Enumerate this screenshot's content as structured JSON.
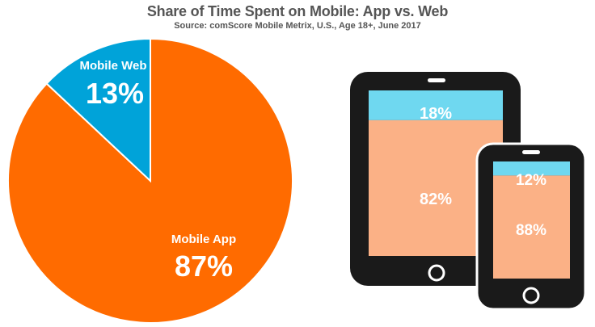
{
  "title": "Share of Time Spent on Mobile: App vs. Web",
  "subtitle": "Source: comScore Mobile Metrix, U.S., Age 18+, June 2017",
  "colors": {
    "app": "#ff6b00",
    "web": "#00a3d9",
    "device_app": "#fbb186",
    "device_web": "#6fd8f0",
    "device_frame": "#1a1a1a"
  },
  "chart_data": [
    {
      "type": "pie",
      "categories": [
        "Mobile Web",
        "Mobile App"
      ],
      "values": [
        13,
        87
      ],
      "labels": {
        "web_name": "Mobile Web",
        "web_value": "13%",
        "app_name": "Mobile App",
        "app_value": "87%"
      }
    },
    {
      "type": "bar",
      "categories": [
        "Tablet",
        "Smartphone"
      ],
      "series": [
        {
          "name": "Web",
          "values": [
            18,
            12
          ]
        },
        {
          "name": "App",
          "values": [
            82,
            88
          ]
        }
      ],
      "labels": {
        "tablet_web": "18%",
        "tablet_app": "82%",
        "phone_web": "12%",
        "phone_app": "88%"
      }
    }
  ]
}
